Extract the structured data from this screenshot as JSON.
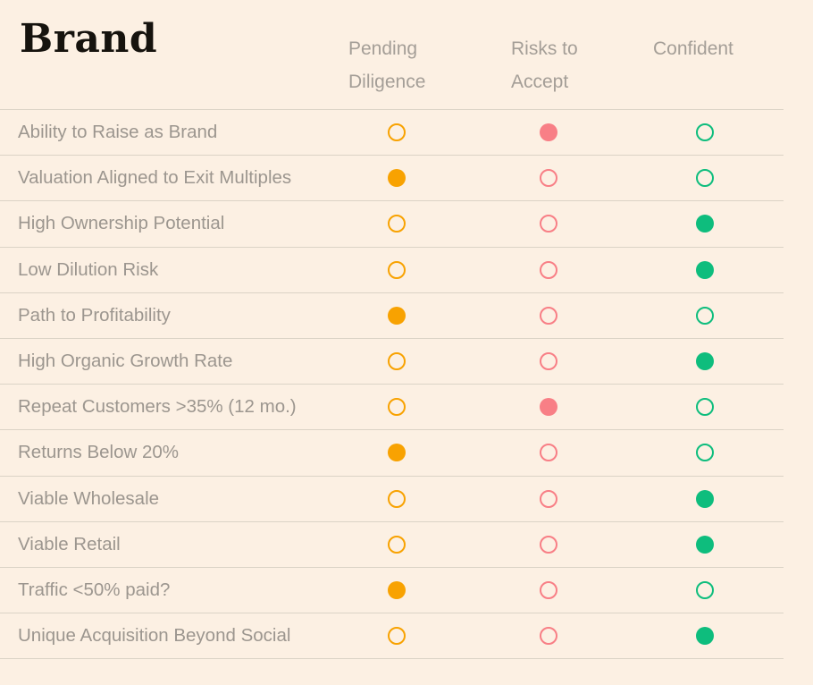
{
  "page": {
    "title": "Brand",
    "background_color": "#FCF0E3",
    "line_color": "#DBD3C6",
    "row_text_color": "#9C968F",
    "header_text_color": "#A49E97"
  },
  "columns": [
    {
      "id": "pending",
      "label": "Pending Diligence",
      "color": "#F8A201"
    },
    {
      "id": "risks",
      "label": "Risks to Accept",
      "color": "#F87F86"
    },
    {
      "id": "confident",
      "label": "Confident",
      "color": "#0EBD7D"
    }
  ],
  "legend": {
    "filled": "selected status",
    "outline": "unselected status"
  },
  "rows": [
    {
      "label": "Ability to Raise as Brand",
      "pending": "outline",
      "risks": "filled",
      "confident": "outline"
    },
    {
      "label": "Valuation Aligned to Exit Multiples",
      "pending": "filled",
      "risks": "outline",
      "confident": "outline"
    },
    {
      "label": "High Ownership Potential",
      "pending": "outline",
      "risks": "outline",
      "confident": "filled"
    },
    {
      "label": "Low Dilution Risk",
      "pending": "outline",
      "risks": "outline",
      "confident": "filled"
    },
    {
      "label": "Path to Profitability",
      "pending": "filled",
      "risks": "outline",
      "confident": "outline"
    },
    {
      "label": "High Organic Growth Rate",
      "pending": "outline",
      "risks": "outline",
      "confident": "filled"
    },
    {
      "label": "Repeat Customers >35% (12 mo.)",
      "pending": "outline",
      "risks": "filled",
      "confident": "outline"
    },
    {
      "label": "Returns Below 20%",
      "pending": "filled",
      "risks": "outline",
      "confident": "outline"
    },
    {
      "label": "Viable Wholesale",
      "pending": "outline",
      "risks": "outline",
      "confident": "filled"
    },
    {
      "label": "Viable Retail",
      "pending": "outline",
      "risks": "outline",
      "confident": "filled"
    },
    {
      "label": "Traffic <50% paid?",
      "pending": "filled",
      "risks": "outline",
      "confident": "outline"
    },
    {
      "label": "Unique Acquisition Beyond Social",
      "pending": "outline",
      "risks": "outline",
      "confident": "filled"
    }
  ]
}
